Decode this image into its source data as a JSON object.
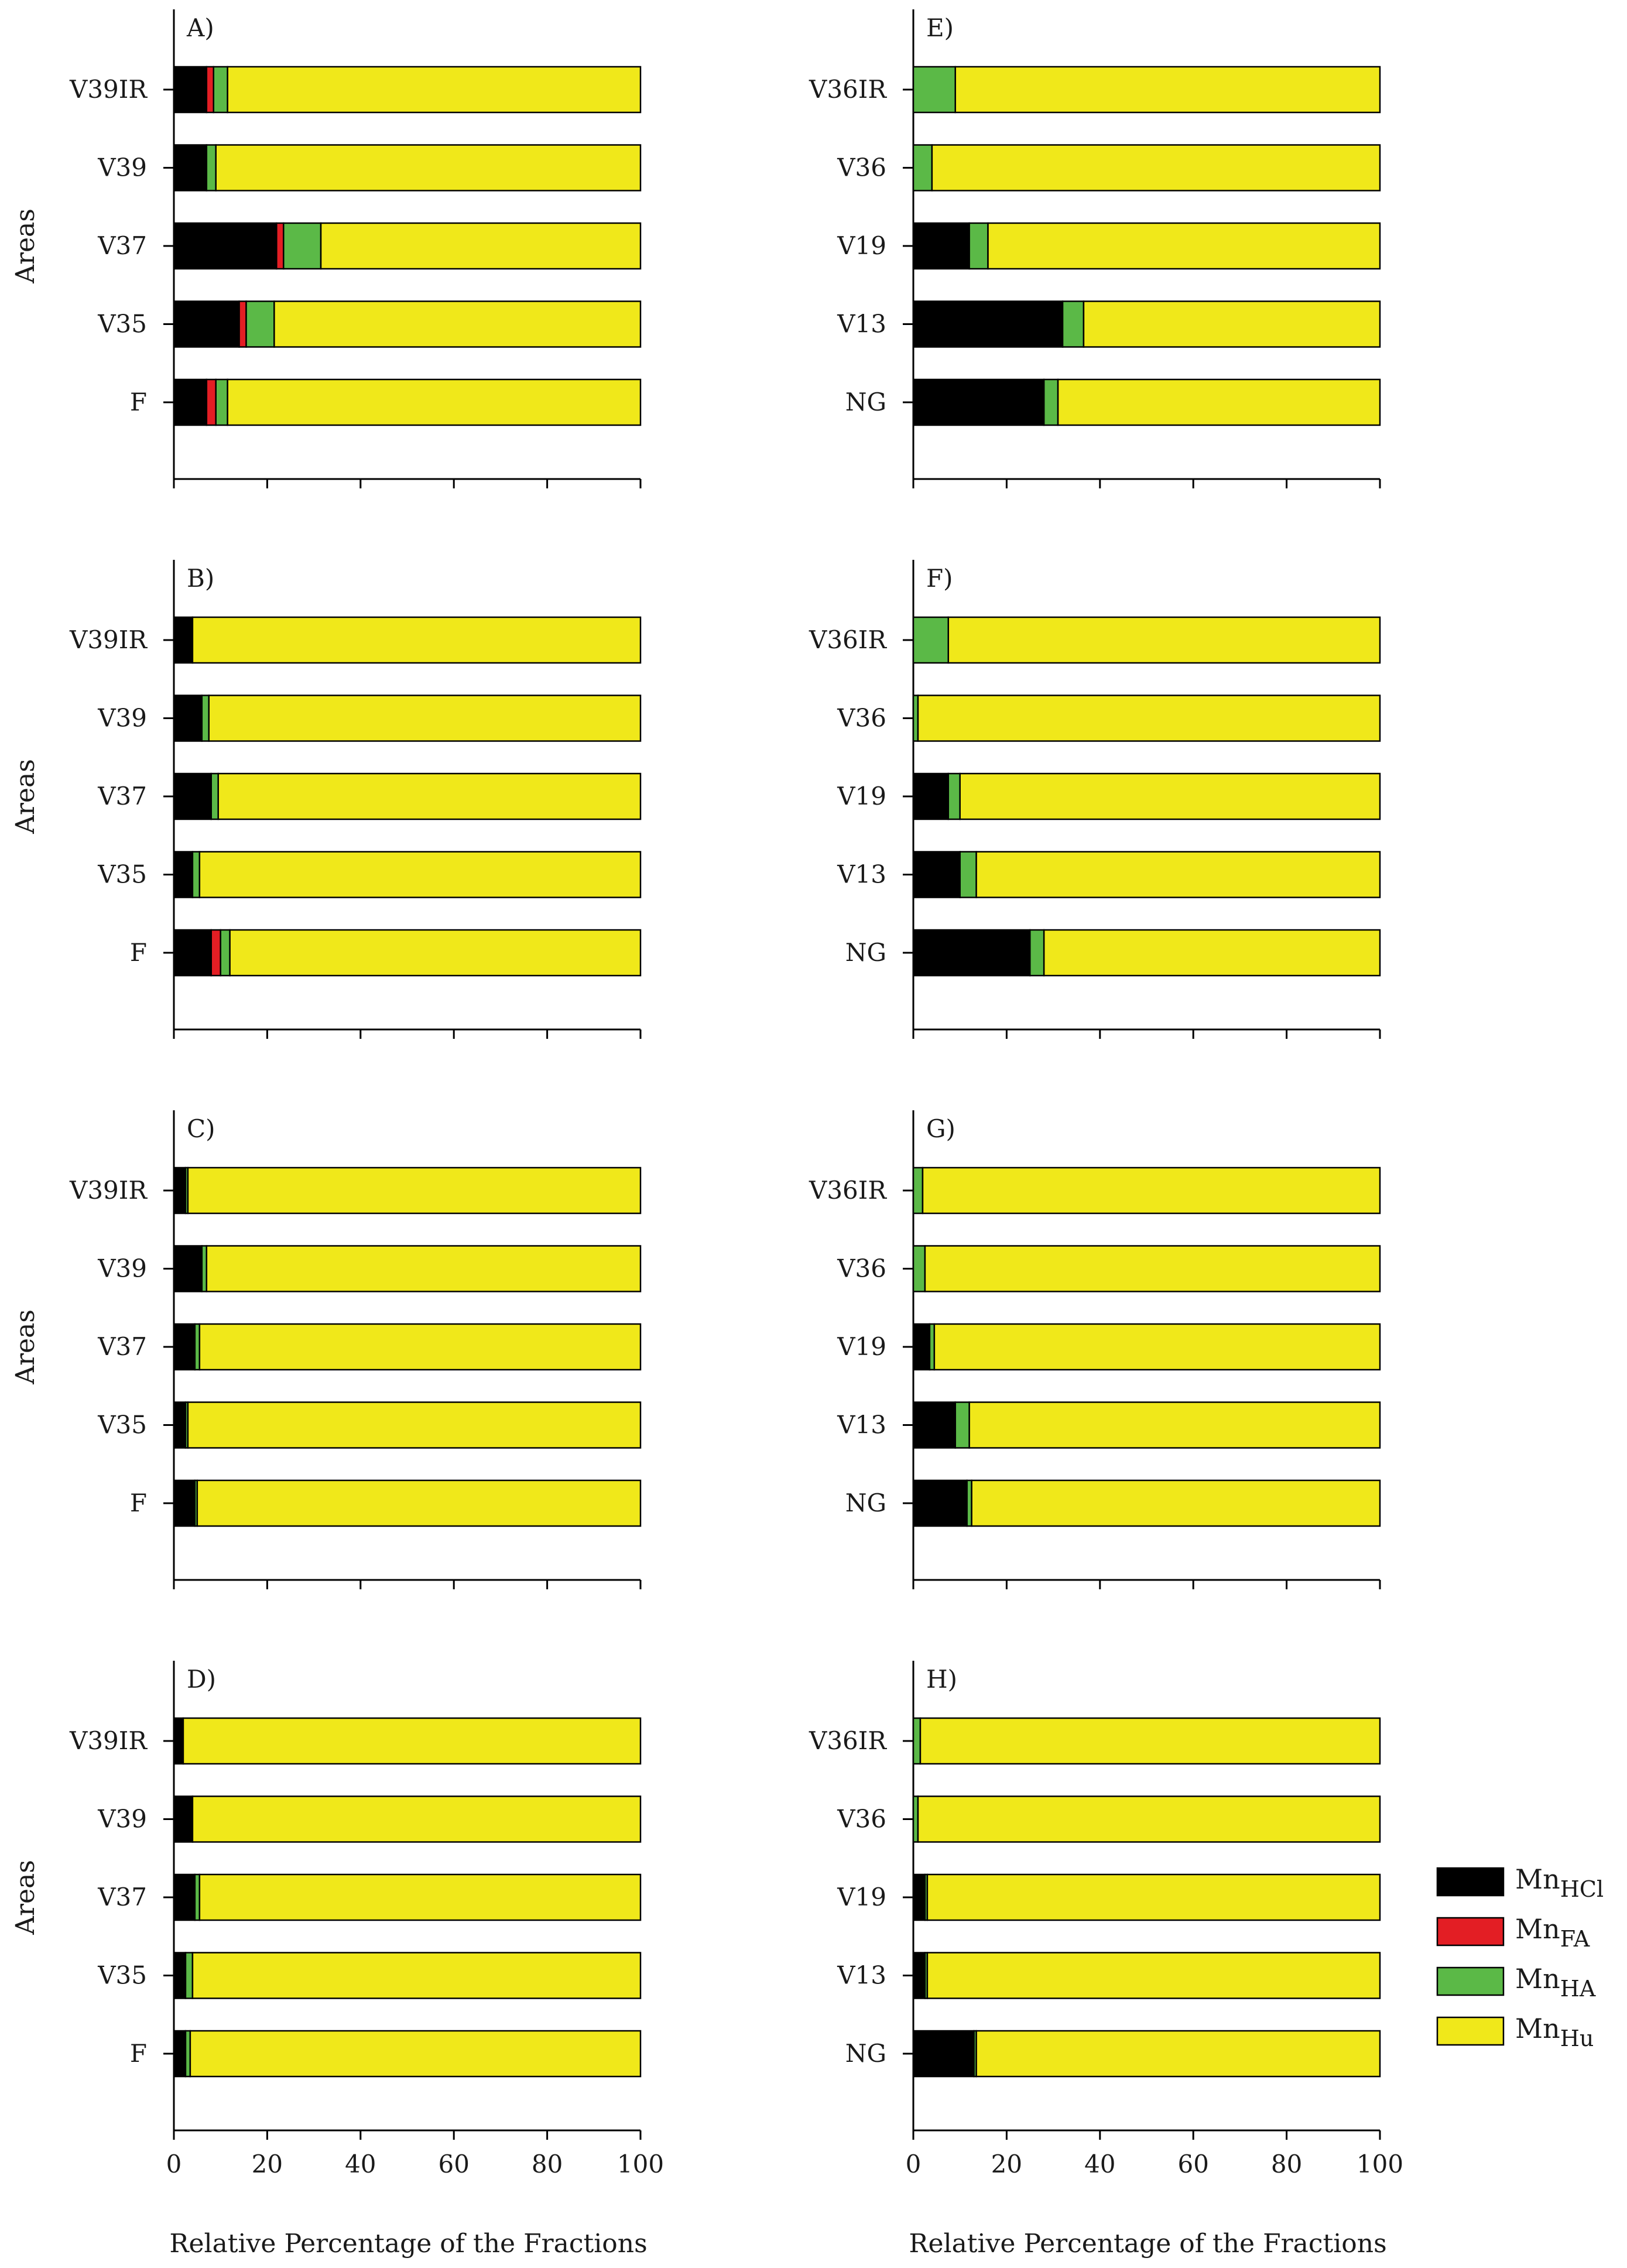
{
  "chart_data": {
    "type": "bar",
    "orientation": "horizontal",
    "stacked": true,
    "xlabel": "Relative Percentage of the Fractions",
    "ylabel": "Areas",
    "xlim": [
      0,
      100
    ],
    "xticks": [
      0,
      20,
      40,
      60,
      80,
      100
    ],
    "grid": false,
    "legend": {
      "placement": "right",
      "entries": [
        {
          "base": "Mn",
          "sub": "HCl",
          "color": "#000000"
        },
        {
          "base": "Mn",
          "sub": "FA",
          "color": "#e31e24"
        },
        {
          "base": "Mn",
          "sub": "HA",
          "color": "#5bb947"
        },
        {
          "base": "Mn",
          "sub": "Hu",
          "color": "#f0e81a"
        }
      ]
    },
    "series_names": [
      "MnHCl",
      "MnFA",
      "MnHA",
      "MnHu"
    ],
    "panels": [
      {
        "label": "A)",
        "categories": [
          "V39IR",
          "V39",
          "V37",
          "V35",
          "F"
        ],
        "series": [
          [
            7,
            7,
            22,
            14,
            7
          ],
          [
            1.5,
            0,
            1.5,
            1.5,
            2
          ],
          [
            3,
            2,
            8,
            6,
            2.5
          ],
          [
            88.5,
            91,
            68.5,
            78.5,
            88.5
          ]
        ]
      },
      {
        "label": "B)",
        "categories": [
          "V39IR",
          "V39",
          "V37",
          "V35",
          "F"
        ],
        "series": [
          [
            4,
            6,
            8,
            4,
            8
          ],
          [
            0,
            0,
            0,
            0,
            2
          ],
          [
            0,
            1.5,
            1.5,
            1.5,
            2
          ],
          [
            96,
            92.5,
            90.5,
            94.5,
            88
          ]
        ]
      },
      {
        "label": "C)",
        "categories": [
          "V39IR",
          "V39",
          "V37",
          "V35",
          "F"
        ],
        "series": [
          [
            2.5,
            6,
            4.5,
            2.5,
            4.5
          ],
          [
            0,
            0,
            0,
            0,
            0
          ],
          [
            0.5,
            1,
            1,
            0.5,
            0.5
          ],
          [
            97,
            93,
            94.5,
            97,
            95
          ]
        ]
      },
      {
        "label": "D)",
        "categories": [
          "V39IR",
          "V39",
          "V37",
          "V35",
          "F"
        ],
        "series": [
          [
            2,
            4,
            4.5,
            2.5,
            2.5
          ],
          [
            0,
            0,
            0,
            0,
            0
          ],
          [
            0,
            0,
            1,
            1.5,
            1
          ],
          [
            98,
            96,
            94.5,
            96,
            96.5
          ]
        ]
      },
      {
        "label": "E)",
        "categories": [
          "V36IR",
          "V36",
          "V19",
          "V13",
          "NG"
        ],
        "series": [
          [
            0,
            0,
            12,
            32,
            28
          ],
          [
            0,
            0,
            0,
            0,
            0
          ],
          [
            9,
            4,
            4,
            4.5,
            3
          ],
          [
            91,
            96,
            84,
            63.5,
            69
          ]
        ]
      },
      {
        "label": "F)",
        "categories": [
          "V36IR",
          "V36",
          "V19",
          "V13",
          "NG"
        ],
        "series": [
          [
            0,
            0,
            7.5,
            10,
            25
          ],
          [
            0,
            0,
            0,
            0,
            0
          ],
          [
            7.5,
            1,
            2.5,
            3.5,
            3
          ],
          [
            92.5,
            99,
            90,
            86.5,
            72
          ]
        ]
      },
      {
        "label": "G)",
        "categories": [
          "V36IR",
          "V36",
          "V19",
          "V13",
          "NG"
        ],
        "series": [
          [
            0,
            0,
            3.5,
            9,
            11.5
          ],
          [
            0,
            0,
            0,
            0,
            0
          ],
          [
            2,
            2.5,
            1,
            3,
            1
          ],
          [
            98,
            97.5,
            95.5,
            88,
            87.5
          ]
        ]
      },
      {
        "label": "H)",
        "categories": [
          "V36IR",
          "V36",
          "V19",
          "V13",
          "NG"
        ],
        "series": [
          [
            0,
            0,
            2.5,
            2.5,
            13
          ],
          [
            0,
            0,
            0,
            0,
            0
          ],
          [
            1.5,
            1,
            0.5,
            0.5,
            0.5
          ],
          [
            98.5,
            99,
            97,
            97,
            86.5
          ]
        ]
      }
    ]
  }
}
